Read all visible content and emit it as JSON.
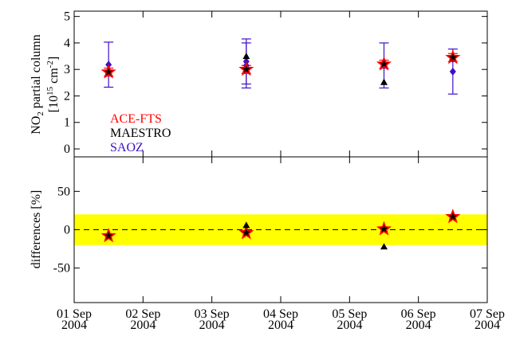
{
  "chart_data": [
    {
      "type": "scatter",
      "panel": "top",
      "ylabel": "NO2 partial column [10^15 cm^-2]",
      "ylabel_parts": {
        "main": "NO",
        "sub1": "2",
        "rest": " partial column",
        "line2_open": "[10",
        "sup1": "15",
        "mid": " cm",
        "sup2": "-2",
        "close": "]"
      },
      "ylim": [
        -0.3,
        5.2
      ],
      "yticks": [
        0,
        1,
        2,
        3,
        4,
        5
      ],
      "ytick_labels": [
        "0",
        "1",
        "2",
        "3",
        "4",
        "5"
      ],
      "legend": [
        "ACE-FTS",
        "MAESTRO",
        "SAOZ"
      ],
      "legend_placement": "bottom-left",
      "series": [
        {
          "name": "ACE-FTS",
          "marker": "star",
          "color": "#ff0000",
          "points": [
            {
              "x": 1.5,
              "y": 2.9,
              "err": 0.15
            },
            {
              "x": 3.5,
              "y": 3.0,
              "err": 0.15
            },
            {
              "x": 5.5,
              "y": 3.2,
              "err": 0.15
            },
            {
              "x": 6.5,
              "y": 3.45,
              "err": 0.15
            }
          ]
        },
        {
          "name": "MAESTRO",
          "marker": "triangle",
          "color": "#000000",
          "points": [
            {
              "x": 1.5,
              "y": 2.88
            },
            {
              "x": 3.5,
              "y": 3.5
            },
            {
              "x": 3.5,
              "y": 3.0
            },
            {
              "x": 5.5,
              "y": 2.52
            },
            {
              "x": 6.5,
              "y": 3.4
            }
          ]
        },
        {
          "name": "SAOZ",
          "marker": "diamond",
          "color": "#3f10c8",
          "points": [
            {
              "x": 1.5,
              "y": 3.18,
              "err": 0.85
            },
            {
              "x": 3.5,
              "y": 3.15,
              "err": 0.85
            },
            {
              "x": 3.5,
              "y": 3.3,
              "err": 0.85
            },
            {
              "x": 5.5,
              "y": 3.15,
              "err": 0.85
            },
            {
              "x": 6.5,
              "y": 2.92,
              "err": 0.85
            }
          ]
        }
      ]
    },
    {
      "type": "scatter",
      "panel": "bottom",
      "ylabel": "differences [%]",
      "ylim": [
        -95,
        95
      ],
      "yticks": [
        -50,
        0,
        50
      ],
      "ytick_labels": [
        "-50",
        "0",
        "50"
      ],
      "band": {
        "from": -20,
        "to": 20,
        "color": "#ffff00"
      },
      "reference_line": {
        "y": 0,
        "style": "dashed"
      },
      "xlim": [
        1,
        7
      ],
      "xticks": [
        1,
        2,
        3,
        4,
        5,
        6,
        7
      ],
      "xtick_labels": [
        [
          "01 Sep",
          "2004"
        ],
        [
          "02 Sep",
          "2004"
        ],
        [
          "03 Sep",
          "2004"
        ],
        [
          "04 Sep",
          "2004"
        ],
        [
          "05 Sep",
          "2004"
        ],
        [
          "06 Sep",
          "2004"
        ],
        [
          "07 Sep",
          "2004"
        ]
      ],
      "series": [
        {
          "name": "ACE-FTS",
          "marker": "star",
          "color": "#ff0000",
          "points": [
            {
              "x": 1.5,
              "y": -8
            },
            {
              "x": 3.5,
              "y": -4
            },
            {
              "x": 5.5,
              "y": 1
            },
            {
              "x": 6.5,
              "y": 17
            }
          ]
        },
        {
          "name": "MAESTRO",
          "marker": "triangle",
          "color": "#000000",
          "points": [
            {
              "x": 3.5,
              "y": 6
            },
            {
              "x": 5.5,
              "y": -22
            }
          ]
        }
      ]
    }
  ]
}
